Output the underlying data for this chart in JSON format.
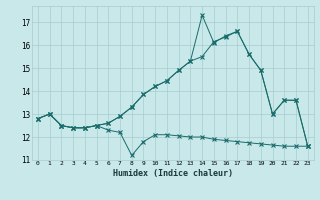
{
  "xlabel": "Humidex (Indice chaleur)",
  "background_color": "#c8e8ea",
  "grid_color": "#a8ccce",
  "line_color": "#1a6b6b",
  "xlim": [
    -0.5,
    23.5
  ],
  "ylim": [
    11,
    17.7
  ],
  "yticks": [
    11,
    12,
    13,
    14,
    15,
    16,
    17
  ],
  "xticks": [
    0,
    1,
    2,
    3,
    4,
    5,
    6,
    7,
    8,
    9,
    10,
    11,
    12,
    13,
    14,
    15,
    16,
    17,
    18,
    19,
    20,
    21,
    22,
    23
  ],
  "series1": [
    12.8,
    13.0,
    12.5,
    12.4,
    12.4,
    12.5,
    12.3,
    12.2,
    11.2,
    11.8,
    12.1,
    12.1,
    12.05,
    12.0,
    12.0,
    11.9,
    11.85,
    11.8,
    11.75,
    11.7,
    11.65,
    11.6,
    11.6,
    11.6
  ],
  "series2": [
    12.8,
    13.0,
    12.5,
    12.4,
    12.4,
    12.5,
    12.6,
    12.9,
    13.3,
    13.85,
    14.2,
    14.45,
    14.9,
    15.3,
    15.5,
    16.15,
    16.35,
    16.6,
    15.6,
    14.9,
    13.0,
    13.6,
    13.6,
    11.6
  ],
  "series3": [
    12.8,
    13.0,
    12.5,
    12.4,
    12.4,
    12.5,
    12.6,
    12.9,
    13.3,
    13.85,
    14.2,
    14.45,
    14.9,
    15.3,
    17.3,
    16.1,
    16.4,
    16.6,
    15.6,
    14.9,
    13.0,
    13.6,
    13.6,
    11.6
  ]
}
